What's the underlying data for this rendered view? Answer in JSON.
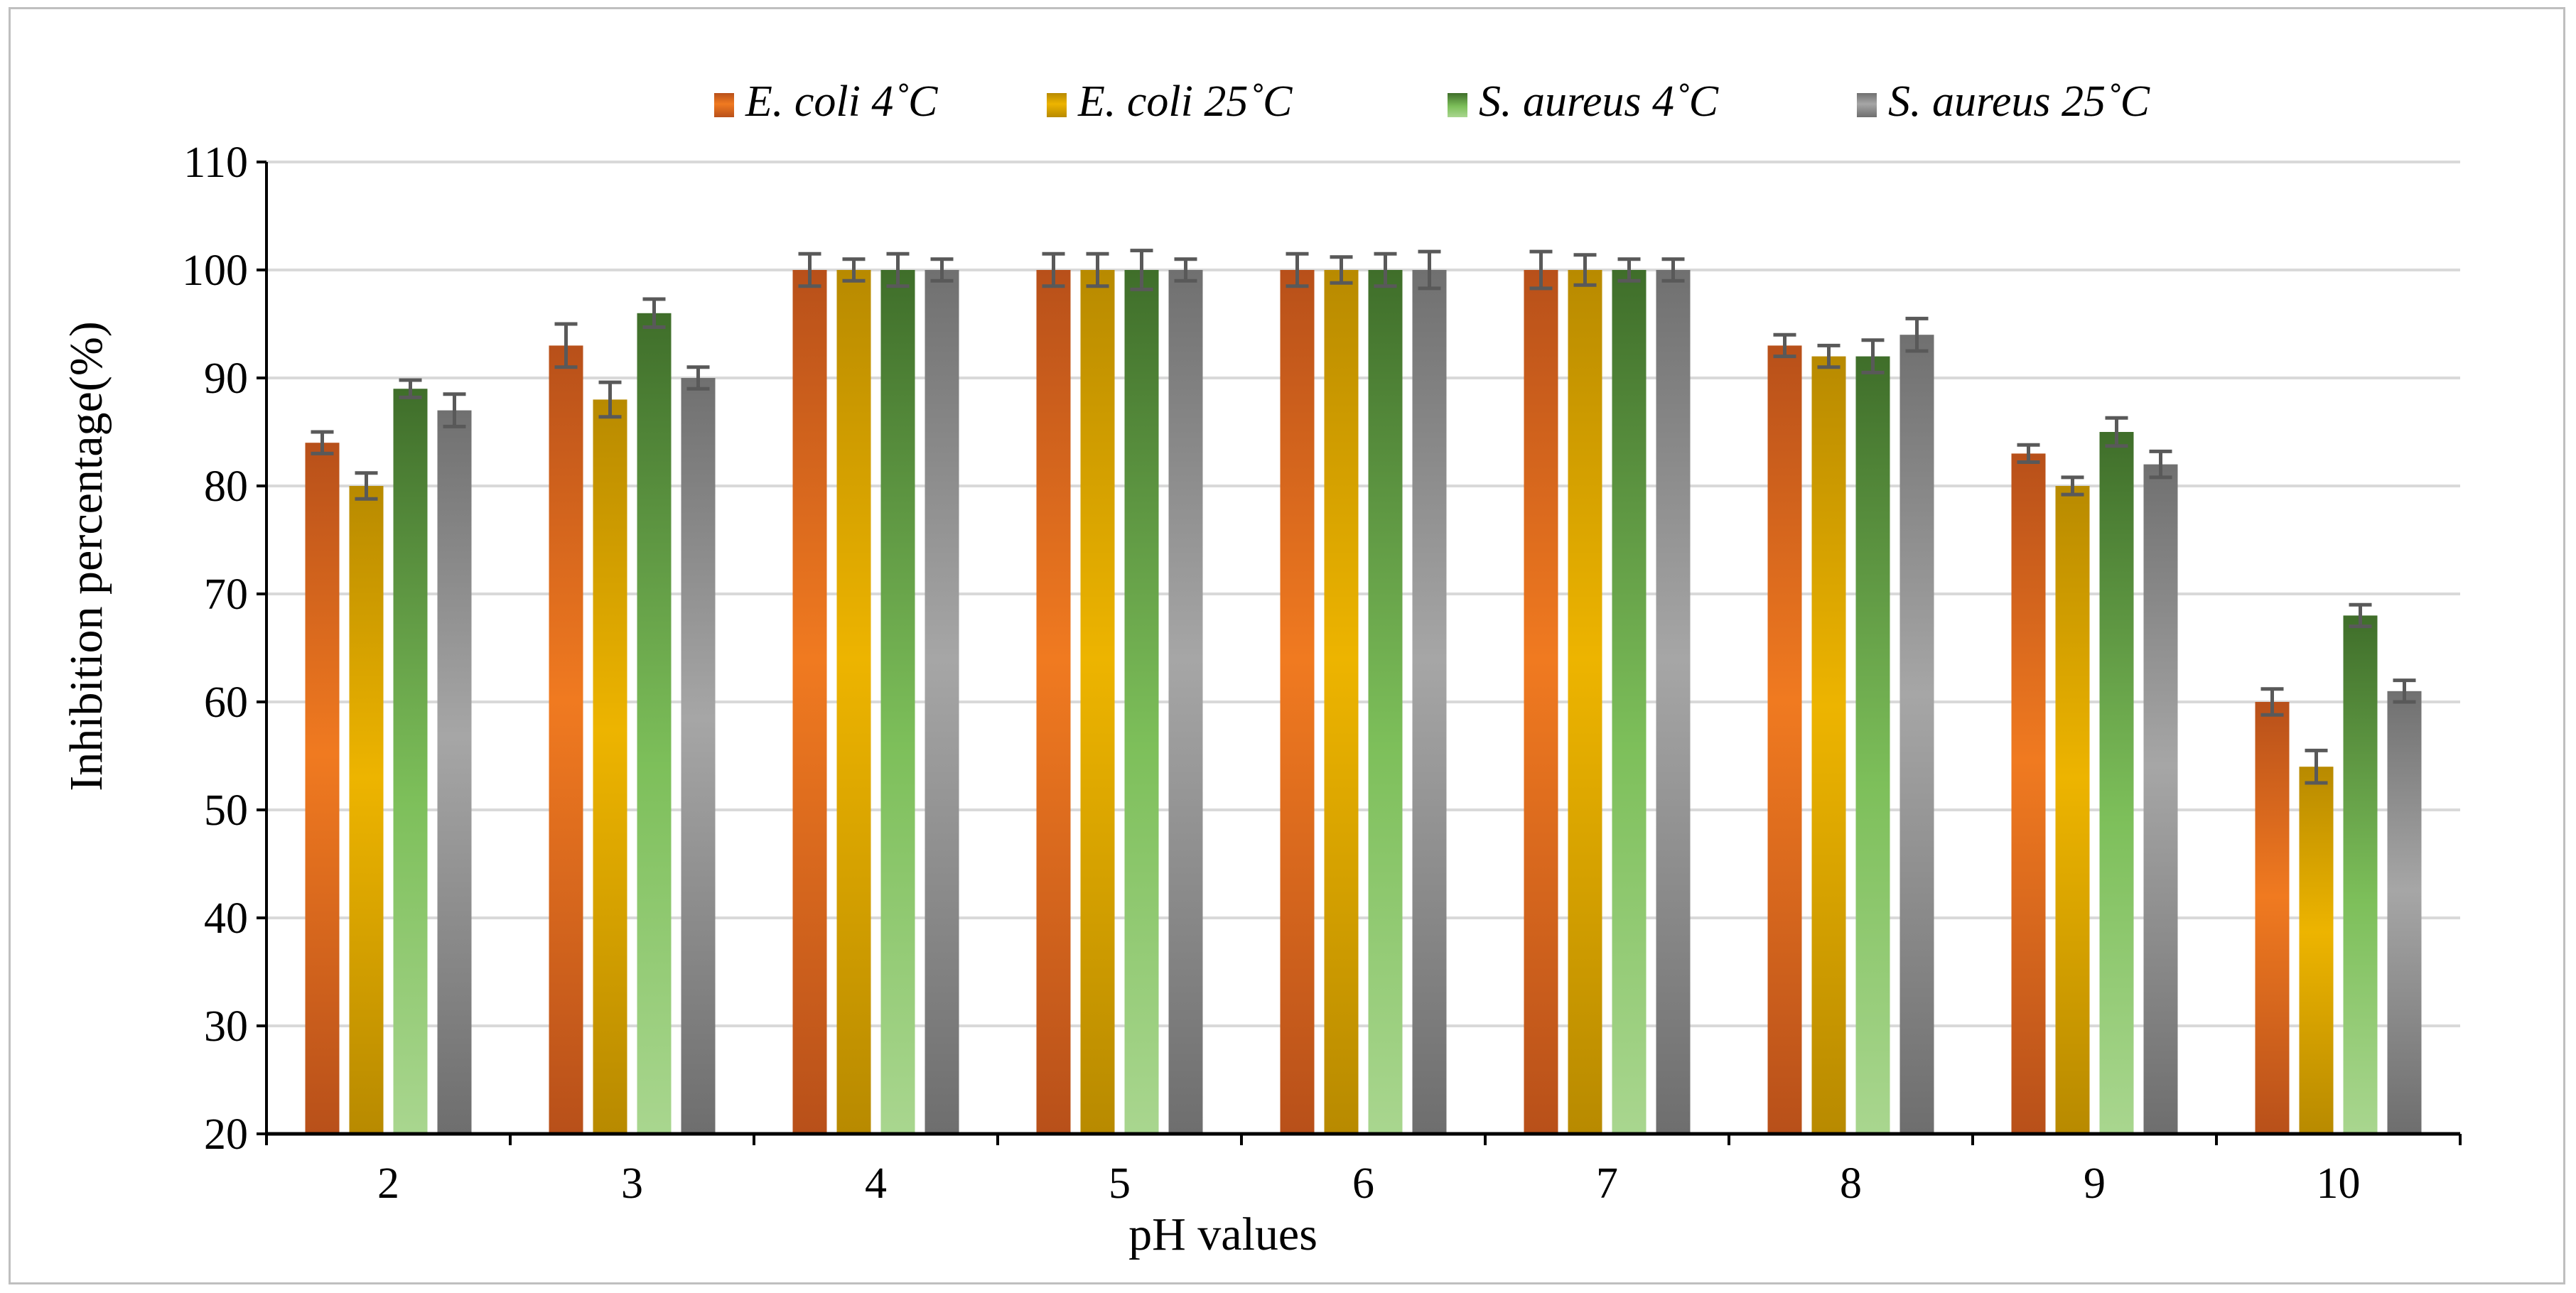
{
  "chart_data": {
    "type": "bar",
    "title": "",
    "xlabel": "pH values",
    "ylabel": "Inhibition percentage(%)",
    "ylim": [
      20,
      110
    ],
    "yticks": [
      20,
      30,
      40,
      50,
      60,
      70,
      80,
      90,
      100,
      110
    ],
    "grid": true,
    "legend_position": "top-center",
    "categories": [
      "2",
      "3",
      "4",
      "5",
      "6",
      "7",
      "8",
      "9",
      "10"
    ],
    "series": [
      {
        "name": "E. coli 4˚C",
        "color": "#E06A1B",
        "values": [
          84,
          93,
          100,
          100,
          100,
          100,
          93,
          83,
          60
        ],
        "errors": [
          1.0,
          2.0,
          1.5,
          1.5,
          1.5,
          1.7,
          1.0,
          0.8,
          1.2
        ]
      },
      {
        "name": "E. coli 25˚C",
        "color": "#D9A300",
        "values": [
          80,
          88,
          100,
          100,
          100,
          100,
          92,
          80,
          54
        ],
        "errors": [
          1.2,
          1.6,
          1.0,
          1.5,
          1.2,
          1.4,
          1.0,
          0.8,
          1.5
        ]
      },
      {
        "name": "S. aureus 4˚C",
        "color": "#6AAE4A",
        "values": [
          89,
          96,
          100,
          100,
          100,
          100,
          92,
          85,
          68
        ],
        "errors": [
          0.8,
          1.3,
          1.5,
          1.8,
          1.5,
          1.0,
          1.5,
          1.3,
          1.0
        ]
      },
      {
        "name": "S. aureus 25˚C",
        "color": "#8C8C8C",
        "values": [
          87,
          90,
          100,
          100,
          100,
          100,
          94,
          82,
          61
        ],
        "errors": [
          1.5,
          1.0,
          1.0,
          1.0,
          1.7,
          1.0,
          1.5,
          1.2,
          1.0
        ]
      }
    ]
  }
}
